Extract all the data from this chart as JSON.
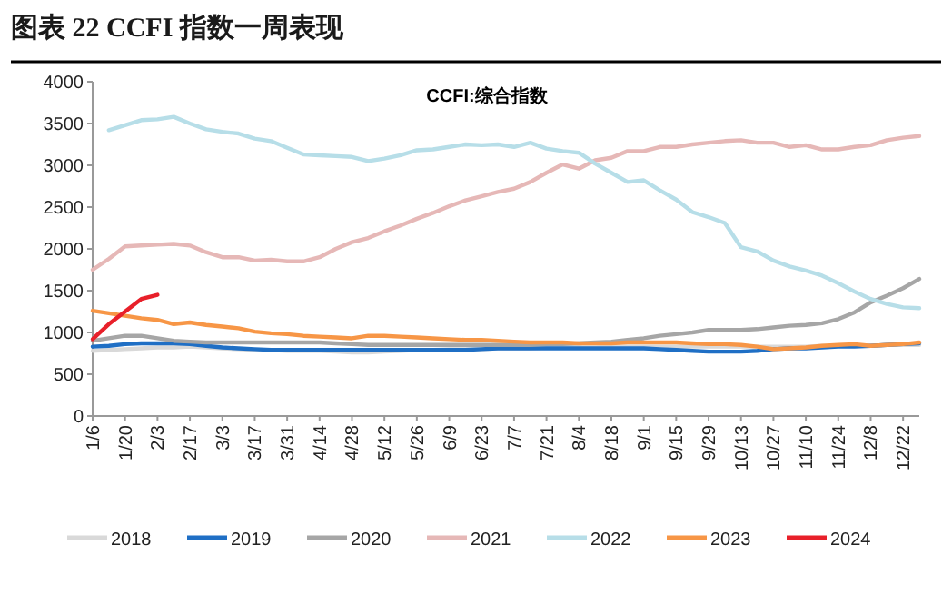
{
  "chart_data": {
    "type": "line",
    "title": "图表 22  CCFI 指数一周表现",
    "subtitle": "CCFI:综合指数",
    "categories": [
      "1/6",
      null,
      "1/20",
      null,
      "2/3",
      null,
      "2/17",
      null,
      "3/3",
      null,
      "3/17",
      null,
      "3/31",
      null,
      "4/14",
      null,
      "4/28",
      null,
      "5/12",
      null,
      "5/26",
      null,
      "6/9",
      null,
      "6/23",
      null,
      "7/7",
      null,
      "7/21",
      null,
      "8/4",
      null,
      "8/18",
      null,
      "9/1",
      null,
      "9/15",
      null,
      "9/29",
      null,
      "10/13",
      null,
      "10/27",
      null,
      "11/10",
      null,
      "11/24",
      null,
      "12/8",
      null,
      "12/22",
      null
    ],
    "series": [
      {
        "name": "2018",
        "color": "#d9d9d9",
        "values": [
          780,
          790,
          800,
          810,
          820,
          820,
          830,
          820,
          810,
          800,
          790,
          790,
          780,
          780,
          780,
          770,
          760,
          760,
          770,
          780,
          790,
          790,
          800,
          800,
          800,
          810,
          810,
          810,
          820,
          820,
          820,
          820,
          830,
          830,
          830,
          830,
          830,
          830,
          830,
          830,
          830,
          830,
          830,
          830,
          830,
          840,
          840,
          840,
          840,
          850,
          850,
          850
        ]
      },
      {
        "name": "2019",
        "color": "#1f6fc5",
        "values": [
          830,
          840,
          860,
          870,
          870,
          870,
          860,
          840,
          820,
          810,
          800,
          790,
          790,
          790,
          790,
          790,
          790,
          790,
          790,
          790,
          790,
          790,
          790,
          790,
          800,
          810,
          810,
          810,
          810,
          810,
          810,
          810,
          810,
          810,
          810,
          800,
          790,
          780,
          770,
          770,
          770,
          780,
          800,
          810,
          810,
          820,
          830,
          830,
          840,
          850,
          860,
          870
        ]
      },
      {
        "name": "2020",
        "color": "#a6a6a6",
        "values": [
          900,
          930,
          960,
          960,
          930,
          900,
          890,
          880,
          880,
          880,
          880,
          880,
          880,
          880,
          880,
          870,
          860,
          850,
          850,
          850,
          850,
          850,
          850,
          850,
          850,
          850,
          850,
          850,
          860,
          860,
          870,
          880,
          890,
          910,
          930,
          960,
          980,
          1000,
          1030,
          1030,
          1030,
          1040,
          1060,
          1080,
          1090,
          1110,
          1160,
          1240,
          1360,
          1440,
          1530,
          1640
        ]
      },
      {
        "name": "2021",
        "color": "#e6b8b7",
        "values": [
          1750,
          1880,
          2030,
          2040,
          2050,
          2060,
          2040,
          1960,
          1900,
          1900,
          1860,
          1870,
          1850,
          1850,
          1900,
          2000,
          2080,
          2130,
          2210,
          2280,
          2360,
          2430,
          2510,
          2580,
          2630,
          2680,
          2720,
          2800,
          2910,
          3010,
          2960,
          3060,
          3090,
          3170,
          3170,
          3220,
          3220,
          3250,
          3270,
          3290,
          3300,
          3270,
          3270,
          3220,
          3240,
          3190,
          3190,
          3220,
          3240,
          3300,
          3330,
          3350
        ]
      },
      {
        "name": "2022",
        "color": "#b7dee8",
        "values": [
          null,
          3420,
          3480,
          3540,
          3550,
          3580,
          3500,
          3430,
          3400,
          3380,
          3320,
          3290,
          3210,
          3130,
          3120,
          3110,
          3100,
          3050,
          3080,
          3120,
          3180,
          3190,
          3220,
          3250,
          3240,
          3250,
          3220,
          3270,
          3200,
          3170,
          3150,
          3020,
          2910,
          2800,
          2820,
          2700,
          2590,
          2440,
          2380,
          2310,
          2020,
          1970,
          1860,
          1790,
          1740,
          1680,
          1590,
          1490,
          1400,
          1340,
          1300,
          1290
        ]
      },
      {
        "name": "2023",
        "color": "#f79646",
        "values": [
          1260,
          1230,
          1200,
          1170,
          1150,
          1100,
          1120,
          1090,
          1070,
          1050,
          1010,
          990,
          980,
          960,
          950,
          940,
          930,
          960,
          960,
          950,
          940,
          930,
          920,
          910,
          910,
          900,
          890,
          880,
          880,
          880,
          870,
          870,
          870,
          880,
          880,
          880,
          880,
          870,
          860,
          860,
          850,
          830,
          800,
          810,
          820,
          840,
          850,
          860,
          840,
          850,
          860,
          880
        ]
      },
      {
        "name": "2024",
        "color": "#e8202a",
        "values": [
          920,
          1100,
          1250,
          1400,
          1450,
          null,
          null,
          null,
          null,
          null,
          null,
          null,
          null,
          null,
          null,
          null,
          null,
          null,
          null,
          null,
          null,
          null,
          null,
          null,
          null,
          null,
          null,
          null,
          null,
          null,
          null,
          null,
          null,
          null,
          null,
          null,
          null,
          null,
          null,
          null,
          null,
          null,
          null,
          null,
          null,
          null,
          null,
          null,
          null,
          null,
          null,
          null
        ]
      }
    ],
    "ylim": [
      0,
      4000
    ],
    "yticks": [
      0,
      500,
      1000,
      1500,
      2000,
      2500,
      3000,
      3500,
      4000
    ],
    "legend": "bottom",
    "grid": false,
    "marker": "none",
    "line_style": "solid"
  }
}
